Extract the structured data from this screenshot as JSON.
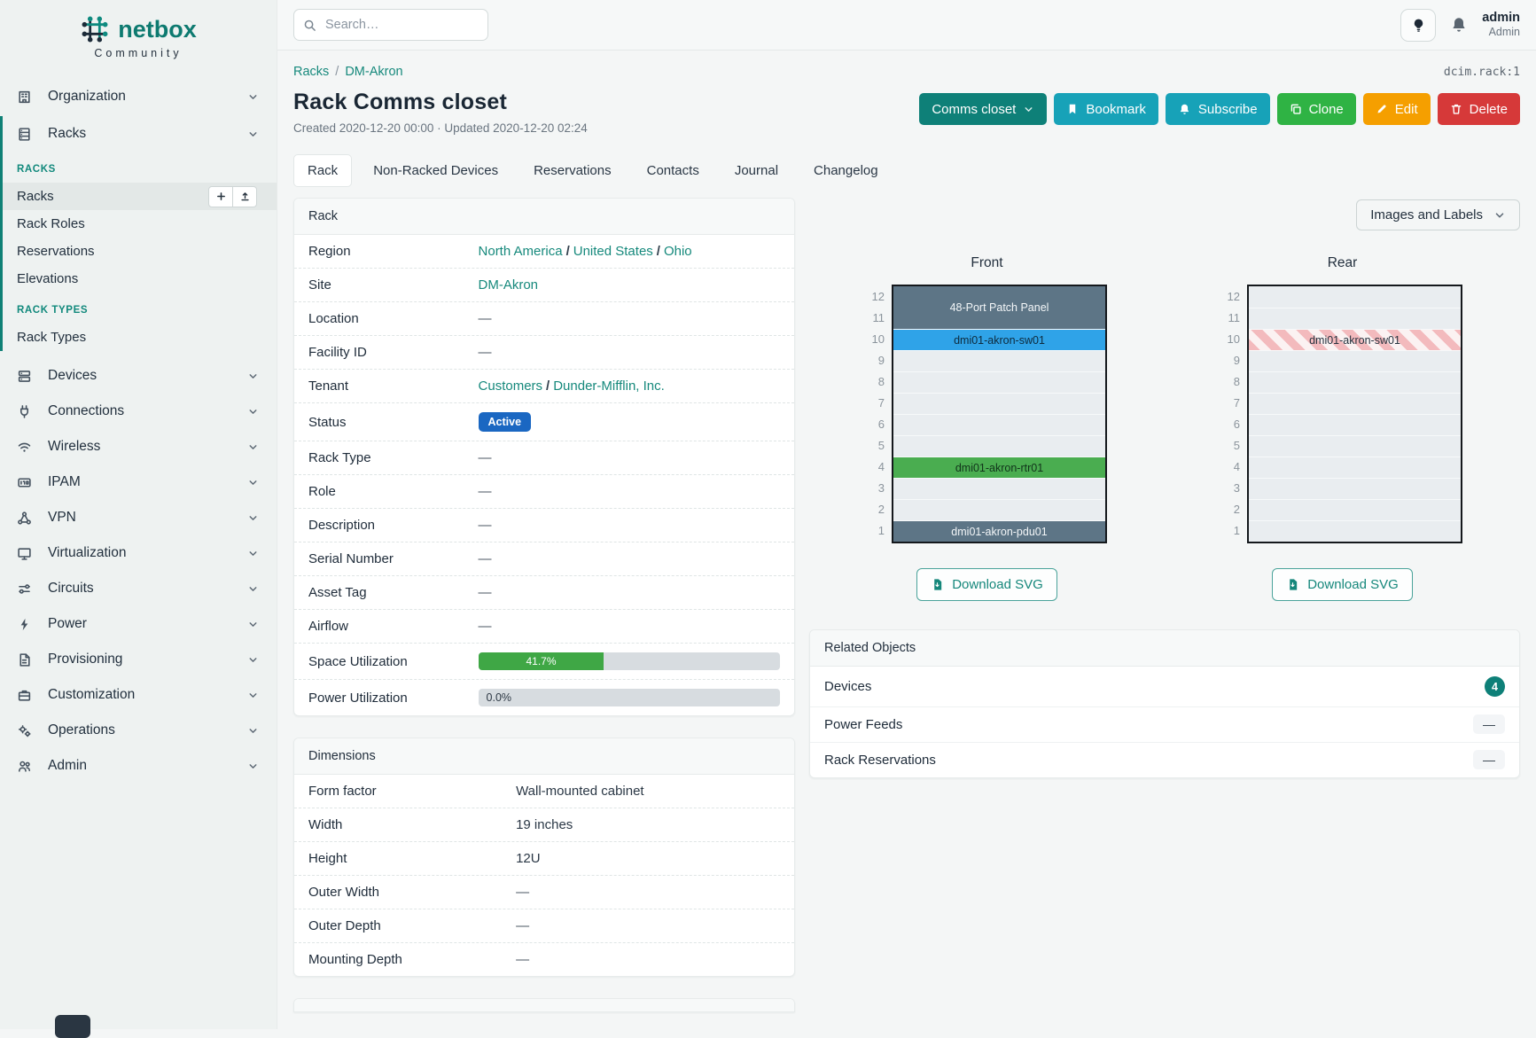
{
  "brand": {
    "name": "netbox",
    "community": "Community"
  },
  "topbar": {
    "search_placeholder": "Search…",
    "user_name": "admin",
    "user_role": "Admin"
  },
  "sidebar": {
    "top_items": [
      {
        "label": "Organization",
        "icon": "building-icon"
      },
      {
        "label": "Racks",
        "icon": "rack-icon"
      }
    ],
    "racks_submenu": {
      "sections": [
        {
          "title": "RACKS",
          "items": [
            {
              "label": "Racks",
              "active": true,
              "actions": [
                {
                  "icon": "plus-icon"
                },
                {
                  "icon": "upload-icon"
                }
              ]
            },
            {
              "label": "Rack Roles"
            },
            {
              "label": "Reservations"
            },
            {
              "label": "Elevations"
            }
          ]
        },
        {
          "title": "RACK TYPES",
          "items": [
            {
              "label": "Rack Types"
            }
          ]
        }
      ]
    },
    "bottom_items": [
      {
        "label": "Devices",
        "icon": "server-icon"
      },
      {
        "label": "Connections",
        "icon": "plug-icon"
      },
      {
        "label": "Wireless",
        "icon": "wifi-icon"
      },
      {
        "label": "IPAM",
        "icon": "ipam-icon"
      },
      {
        "label": "VPN",
        "icon": "network-icon"
      },
      {
        "label": "Virtualization",
        "icon": "monitor-icon"
      },
      {
        "label": "Circuits",
        "icon": "circuits-icon"
      },
      {
        "label": "Power",
        "icon": "bolt-icon"
      },
      {
        "label": "Provisioning",
        "icon": "document-icon"
      },
      {
        "label": "Customization",
        "icon": "briefcase-icon"
      },
      {
        "label": "Operations",
        "icon": "gears-icon"
      },
      {
        "label": "Admin",
        "icon": "users-icon"
      }
    ]
  },
  "header": {
    "breadcrumb": [
      {
        "label": "Racks"
      },
      {
        "label": "DM-Akron"
      }
    ],
    "breadcrumb_separator": "/",
    "object_id": "dcim.rack:1",
    "title": "Rack Comms closet",
    "meta": "Created 2020-12-20 00:00 · Updated 2020-12-20 02:24",
    "buttons": [
      {
        "label": "Comms closet",
        "trailing_icon": "chevron-down-icon",
        "color": "#0e8078",
        "name": "rack-selector-dropdown"
      },
      {
        "label": "Bookmark",
        "icon": "bookmark-icon",
        "color": "#17a2b8",
        "name": "bookmark-button"
      },
      {
        "label": "Subscribe",
        "icon": "bell-plus-icon",
        "color": "#17a2b8",
        "name": "subscribe-button"
      },
      {
        "label": "Clone",
        "icon": "copy-icon",
        "color": "#2fb344",
        "name": "clone-button"
      },
      {
        "label": "Edit",
        "icon": "pencil-icon",
        "color": "#f59f00",
        "name": "edit-button"
      },
      {
        "label": "Delete",
        "icon": "trash-icon",
        "color": "#d63939",
        "name": "delete-button"
      }
    ]
  },
  "tabs": [
    {
      "label": "Rack",
      "active": true
    },
    {
      "label": "Non-Racked Devices"
    },
    {
      "label": "Reservations"
    },
    {
      "label": "Contacts"
    },
    {
      "label": "Journal"
    },
    {
      "label": "Changelog"
    }
  ],
  "rack_panel": {
    "title": "Rack",
    "rows": [
      {
        "label": "Region",
        "type": "links",
        "links": [
          "North America",
          "United States",
          "Ohio"
        ]
      },
      {
        "label": "Site",
        "type": "links",
        "links": [
          "DM-Akron"
        ]
      },
      {
        "label": "Location",
        "type": "text",
        "value": "—"
      },
      {
        "label": "Facility ID",
        "type": "text",
        "value": "—"
      },
      {
        "label": "Tenant",
        "type": "links",
        "links": [
          "Customers",
          "Dunder-Mifflin, Inc."
        ]
      },
      {
        "label": "Status",
        "type": "badge",
        "value": "Active",
        "badge_color": "#1a67c2"
      },
      {
        "label": "Rack Type",
        "type": "text",
        "value": "—"
      },
      {
        "label": "Role",
        "type": "text",
        "value": "—"
      },
      {
        "label": "Description",
        "type": "text",
        "value": "—"
      },
      {
        "label": "Serial Number",
        "type": "text",
        "value": "—"
      },
      {
        "label": "Asset Tag",
        "type": "text",
        "value": "—"
      },
      {
        "label": "Airflow",
        "type": "text",
        "value": "—"
      },
      {
        "label": "Space Utilization",
        "type": "progress",
        "percent": 41.7,
        "text": "41.7%"
      },
      {
        "label": "Power Utilization",
        "type": "progress",
        "percent": 0,
        "text": "0.0%"
      }
    ]
  },
  "dimensions_panel": {
    "title": "Dimensions",
    "rows": [
      {
        "label": "Form factor",
        "type": "text",
        "value": "Wall-mounted cabinet"
      },
      {
        "label": "Width",
        "type": "text",
        "value": "19 inches"
      },
      {
        "label": "Height",
        "type": "text",
        "value": "12U"
      },
      {
        "label": "Outer Width",
        "type": "text",
        "value": "—"
      },
      {
        "label": "Outer Depth",
        "type": "text",
        "value": "—"
      },
      {
        "label": "Mounting Depth",
        "type": "text",
        "value": "—"
      }
    ]
  },
  "elevations": {
    "view_toggle": "Images and Labels",
    "download_label": "Download SVG",
    "unit_numbers": [
      "12",
      "11",
      "10",
      "9",
      "8",
      "7",
      "6",
      "5",
      "4",
      "3",
      "2",
      "1"
    ],
    "front": {
      "title": "Front",
      "units": [
        {
          "span": 2,
          "label": "48-Port Patch Panel",
          "style": "slate"
        },
        {
          "span": 1,
          "label": "dmi01-akron-sw01",
          "style": "blue"
        },
        {
          "span": 1
        },
        {
          "span": 1
        },
        {
          "span": 1
        },
        {
          "span": 1
        },
        {
          "span": 1
        },
        {
          "span": 1,
          "label": "dmi01-akron-rtr01",
          "style": "green"
        },
        {
          "span": 1
        },
        {
          "span": 1
        },
        {
          "span": 1,
          "label": "dmi01-akron-pdu01",
          "style": "slate"
        }
      ]
    },
    "rear": {
      "title": "Rear",
      "units": [
        {
          "span": 1
        },
        {
          "span": 1
        },
        {
          "span": 1,
          "label": "dmi01-akron-sw01",
          "style": "striped"
        },
        {
          "span": 1
        },
        {
          "span": 1
        },
        {
          "span": 1
        },
        {
          "span": 1
        },
        {
          "span": 1
        },
        {
          "span": 1
        },
        {
          "span": 1
        },
        {
          "span": 1
        },
        {
          "span": 1
        }
      ]
    }
  },
  "related_objects": {
    "title": "Related Objects",
    "rows": [
      {
        "label": "Devices",
        "badge": "4"
      },
      {
        "label": "Power Feeds",
        "value": "—"
      },
      {
        "label": "Rack Reservations",
        "value": "—"
      }
    ]
  },
  "colors": {
    "accent_teal": "#0e8078",
    "link_teal": "#16897c",
    "status_blue": "#1a67c2",
    "progress_green": "#3fa745",
    "rack_slate": "#5d7586",
    "rack_blue": "#2fa3e8",
    "rack_green": "#4aad50"
  }
}
